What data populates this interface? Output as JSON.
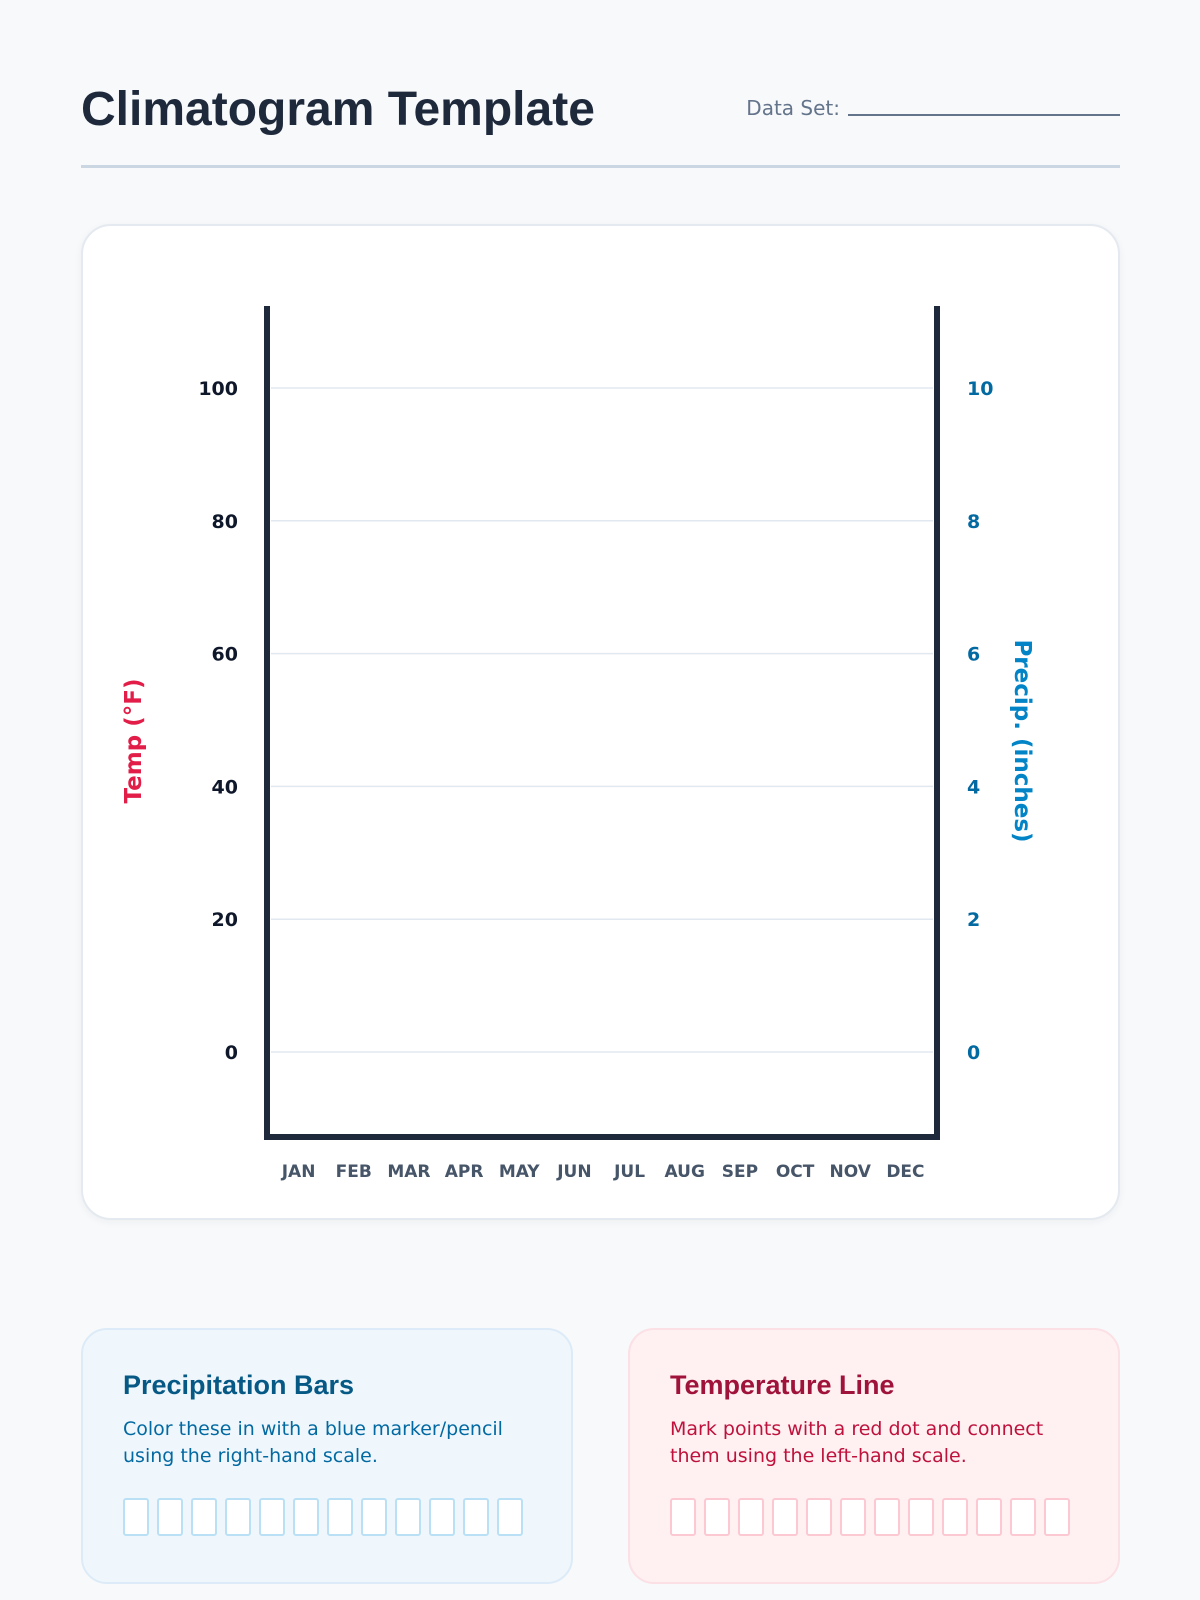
{
  "header": {
    "title": "Climatogram Template",
    "dataset_label": "Data Set:"
  },
  "chart_data": {
    "type": "bar",
    "categories": [
      "JAN",
      "FEB",
      "MAR",
      "APR",
      "MAY",
      "JUN",
      "JUL",
      "AUG",
      "SEP",
      "OCT",
      "NOV",
      "DEC"
    ],
    "series": [],
    "y_left": {
      "label": "Temp (°F)",
      "ticks": [
        0,
        20,
        40,
        60,
        80,
        100
      ],
      "tick_labels": [
        "0",
        "20",
        "40",
        "60",
        "80",
        "100"
      ],
      "color": "#e11d48"
    },
    "y_right": {
      "label": "Precip. (inches)",
      "ticks": [
        0,
        2,
        4,
        6,
        8,
        10
      ],
      "tick_labels": [
        "0",
        "2",
        "4",
        "6",
        "8",
        "10"
      ],
      "color": "#0284c7"
    },
    "grid": true
  },
  "legends": {
    "precip": {
      "title": "Precipitation Bars",
      "description": "Color these in with a blue marker/pencil using the right-hand scale.",
      "color": "#075985"
    },
    "temp": {
      "title": "Temperature Line",
      "description": "Mark points with a red dot and connect them using the left-hand scale.",
      "color": "#9f1239"
    }
  }
}
